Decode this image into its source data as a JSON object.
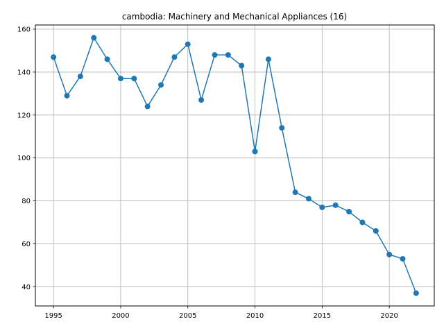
{
  "chart_data": {
    "type": "line",
    "title": "cambodia: Machinery and Mechanical Appliances (16)",
    "xlabel": "",
    "ylabel": "",
    "x": [
      1995,
      1996,
      1997,
      1998,
      1999,
      2000,
      2001,
      2002,
      2003,
      2004,
      2005,
      2006,
      2007,
      2008,
      2009,
      2010,
      2011,
      2012,
      2013,
      2014,
      2015,
      2016,
      2017,
      2018,
      2019,
      2020,
      2021,
      2022
    ],
    "series": [
      {
        "values": [
          147,
          129,
          138,
          156,
          146,
          137,
          137,
          124,
          134,
          147,
          153,
          127,
          148,
          148,
          143,
          103,
          146,
          114,
          84,
          81,
          77,
          78,
          75,
          70,
          66,
          55,
          53,
          37
        ]
      }
    ],
    "xlim": [
      1993.65,
      2023.35
    ],
    "ylim": [
      31.05,
      161.95
    ],
    "xticks": [
      "1995",
      "2000",
      "2005",
      "2010",
      "2015",
      "2020"
    ],
    "yticks": [
      "40",
      "60",
      "80",
      "100",
      "120",
      "140",
      "160"
    ],
    "grid": true,
    "line_color": "#1f77b4",
    "marker": "circle"
  }
}
